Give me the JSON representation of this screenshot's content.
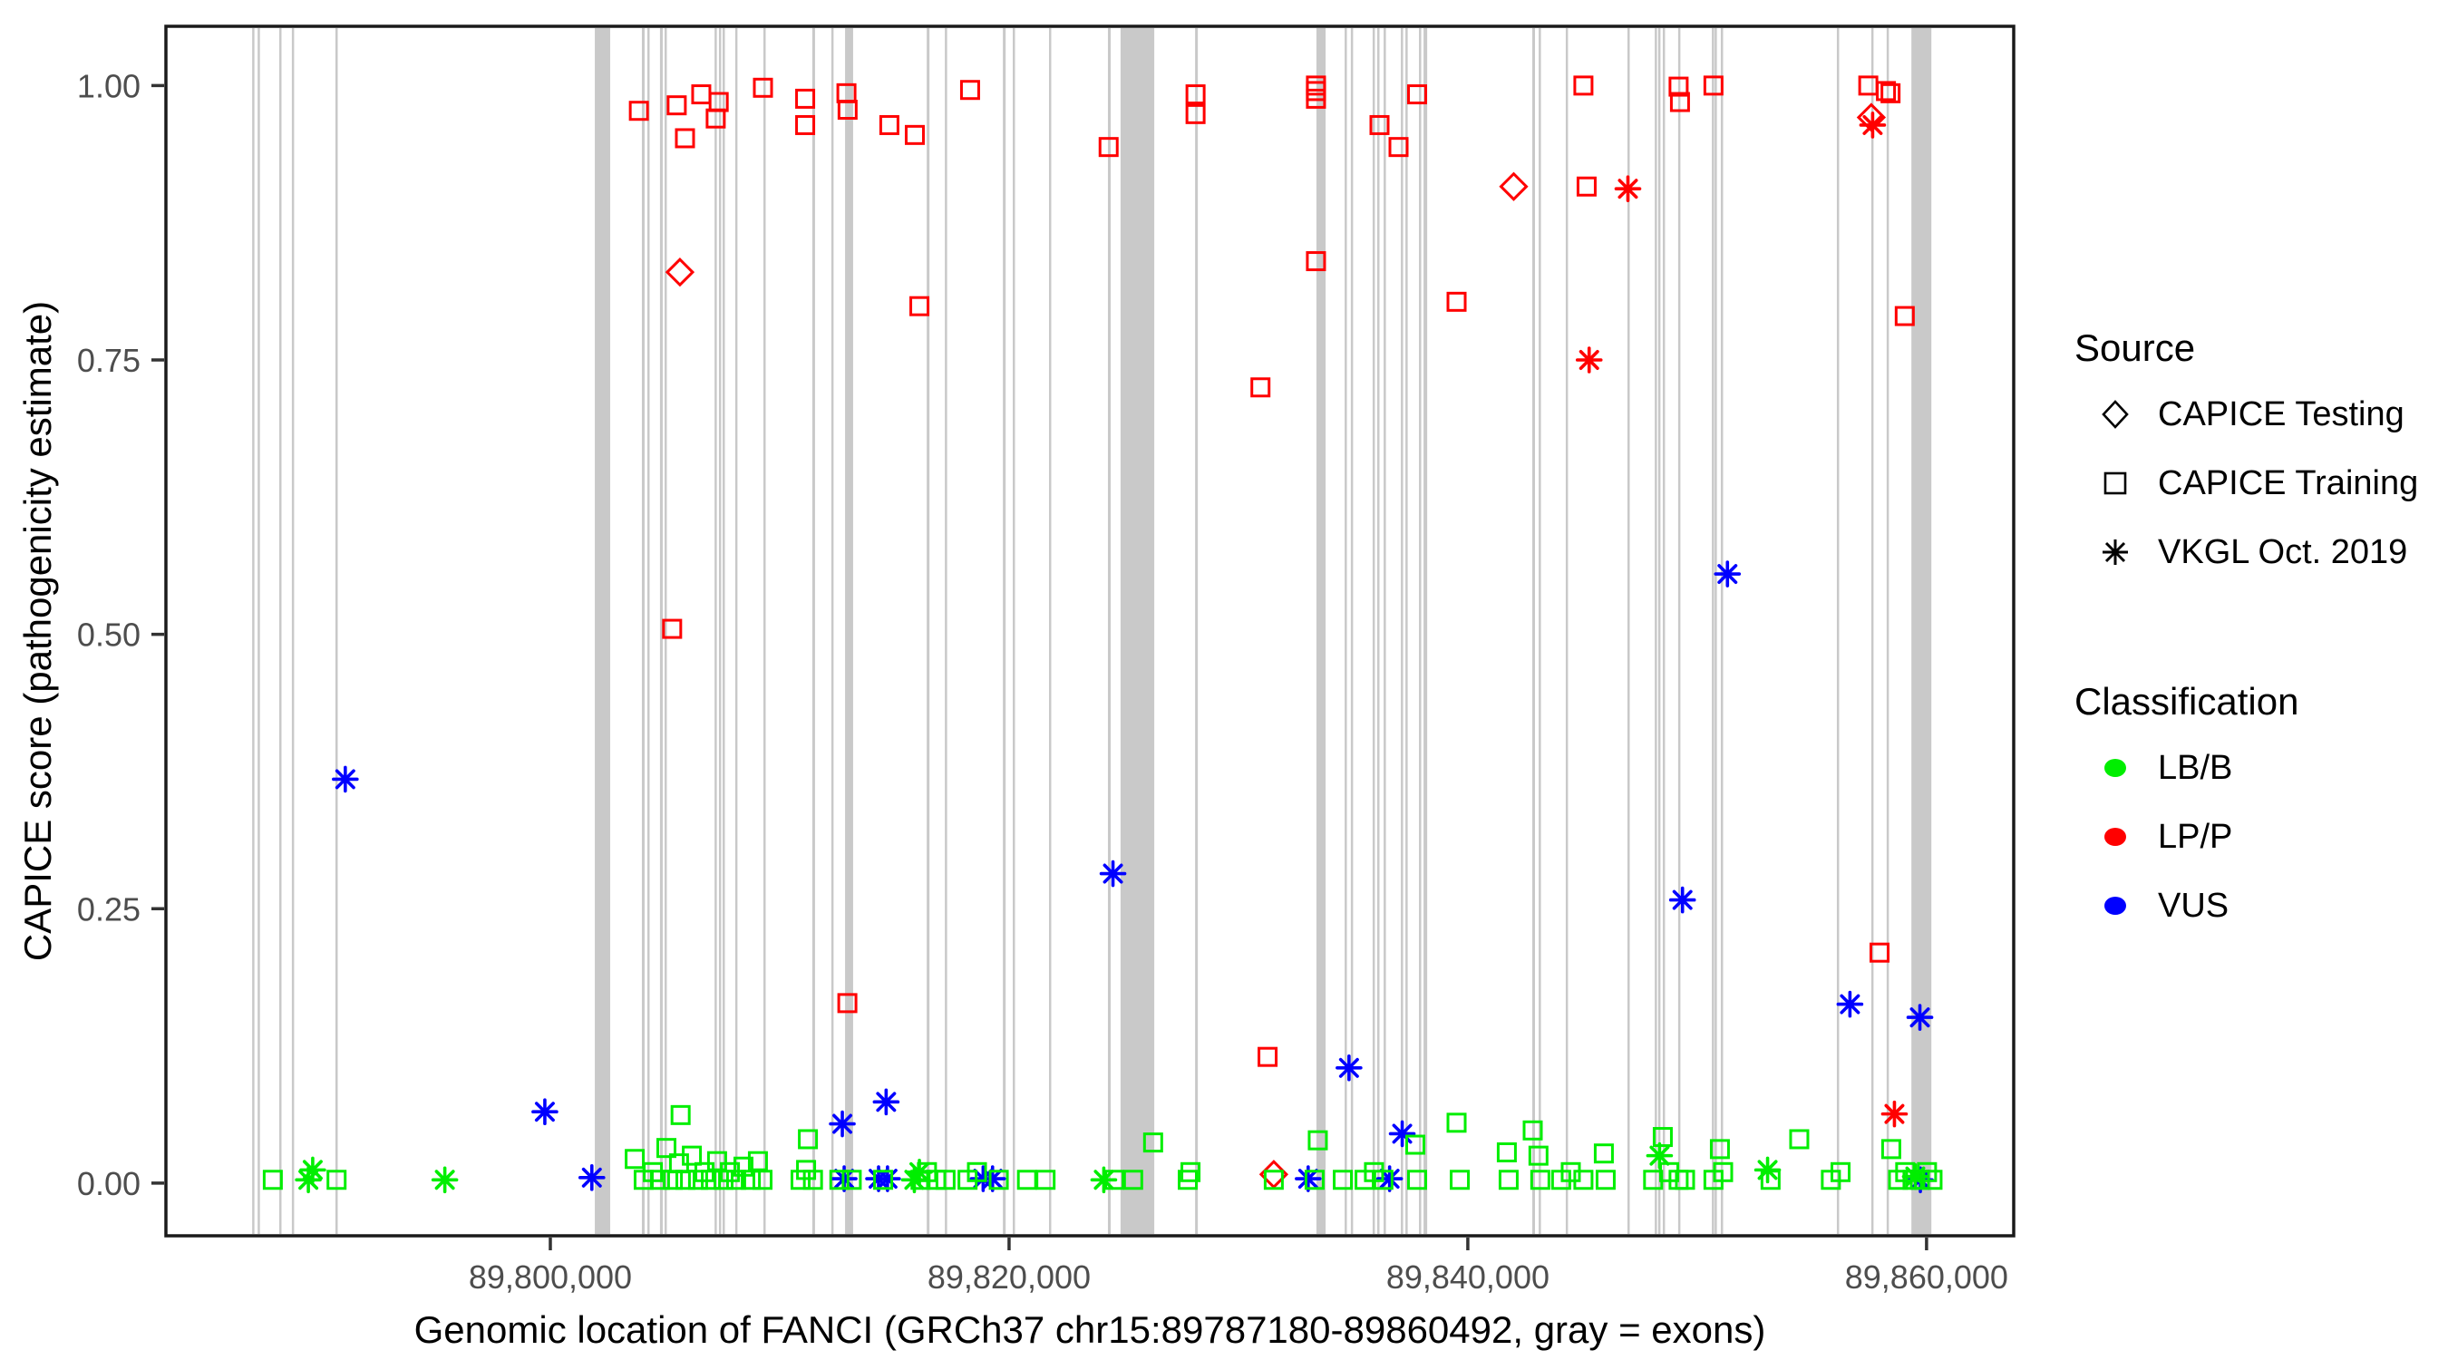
{
  "axes": {
    "x_title": "Genomic location of FANCI (GRCh37 chr15:89787180-89860492, gray = exons)",
    "y_title": "CAPICE score (pathogenicity estimate)",
    "x_ticks": [
      {
        "bp": 89800000,
        "label": "89,800,000"
      },
      {
        "bp": 89820000,
        "label": "89,820,000"
      },
      {
        "bp": 89840000,
        "label": "89,840,000"
      },
      {
        "bp": 89860000,
        "label": "89,860,000"
      }
    ],
    "y_ticks": [
      {
        "v": 0.0,
        "label": "0.00"
      },
      {
        "v": 0.25,
        "label": "0.25"
      },
      {
        "v": 0.5,
        "label": "0.50"
      },
      {
        "v": 0.75,
        "label": "0.75"
      },
      {
        "v": 1.0,
        "label": "1.00"
      }
    ]
  },
  "legend": {
    "source": {
      "title": "Source",
      "items": [
        {
          "label": "CAPICE Testing",
          "shape": "diamond"
        },
        {
          "label": "CAPICE Training",
          "shape": "square"
        },
        {
          "label": "VKGL Oct. 2019",
          "shape": "asterisk"
        }
      ]
    },
    "classification": {
      "title": "Classification",
      "items": [
        {
          "label": "LB/B",
          "color": "#00EE00"
        },
        {
          "label": "LP/P",
          "color": "#FF0000"
        },
        {
          "label": "VUS",
          "color": "#0000FF"
        }
      ]
    }
  },
  "colors": {
    "LB/B": "#00EE00",
    "LP/P": "#FF0000",
    "VUS": "#0000FF",
    "exon": "#C9C9C9",
    "panel_border": "#1A1A1A",
    "tick_text": "#4D4D4D"
  },
  "chart_data": {
    "type": "scatter",
    "title": "",
    "xlabel": "Genomic location of FANCI (GRCh37 chr15:89787180-89860492, gray = exons)",
    "ylabel": "CAPICE score (pathogenicity estimate)",
    "x_domain_bp": [
      89783240,
      89863800
    ],
    "y_domain": [
      -0.048,
      1.054
    ],
    "grid": false,
    "legend_position": "right",
    "exons_bp": [
      [
        89787000,
        89787090
      ],
      [
        89787240,
        89787330
      ],
      [
        89788180,
        89788270
      ],
      [
        89788730,
        89788820
      ],
      [
        89790630,
        89790730
      ],
      [
        89801940,
        89802610
      ],
      [
        89803990,
        89804110
      ],
      [
        89804230,
        89804310
      ],
      [
        89804780,
        89804900
      ],
      [
        89804980,
        89805060
      ],
      [
        89807160,
        89807240
      ],
      [
        89807350,
        89807430
      ],
      [
        89807510,
        89807590
      ],
      [
        89808060,
        89808140
      ],
      [
        89809290,
        89809370
      ],
      [
        89811420,
        89811540
      ],
      [
        89812250,
        89812330
      ],
      [
        89812850,
        89813200
      ],
      [
        89816410,
        89816530
      ],
      [
        89817200,
        89817280
      ],
      [
        89819730,
        89819850
      ],
      [
        89820160,
        89820240
      ],
      [
        89821740,
        89821820
      ],
      [
        89824310,
        89824430
      ],
      [
        89824860,
        89826330
      ],
      [
        89828110,
        89828230
      ],
      [
        89833400,
        89833800
      ],
      [
        89834630,
        89834710
      ],
      [
        89834900,
        89834980
      ],
      [
        89835850,
        89835930
      ],
      [
        89836050,
        89836130
      ],
      [
        89836330,
        89836410
      ],
      [
        89837080,
        89837160
      ],
      [
        89837280,
        89837360
      ],
      [
        89837870,
        89837950
      ],
      [
        89838070,
        89838230
      ],
      [
        89842810,
        89842930
      ],
      [
        89843090,
        89843170
      ],
      [
        89844270,
        89844350
      ],
      [
        89846960,
        89847040
      ],
      [
        89848150,
        89848230
      ],
      [
        89848300,
        89848380
      ],
      [
        89848500,
        89848580
      ],
      [
        89849170,
        89849250
      ],
      [
        89850640,
        89850720
      ],
      [
        89850760,
        89850840
      ],
      [
        89851030,
        89851110
      ],
      [
        89856090,
        89856170
      ],
      [
        89857590,
        89857670
      ],
      [
        89858260,
        89858340
      ],
      [
        89859340,
        89860210
      ]
    ],
    "points_format": [
      "bp",
      "score",
      "source",
      "classification"
    ],
    "points": [
      [
        89803860,
        0.977,
        "training",
        "LP/P"
      ],
      [
        89805510,
        0.982,
        "training",
        "LP/P"
      ],
      [
        89806580,
        0.992,
        "training",
        "LP/P"
      ],
      [
        89807340,
        0.985,
        "training",
        "LP/P"
      ],
      [
        89807210,
        0.97,
        "training",
        "LP/P"
      ],
      [
        89805870,
        0.952,
        "training",
        "LP/P"
      ],
      [
        89809270,
        0.998,
        "training",
        "LP/P"
      ],
      [
        89811110,
        0.988,
        "training",
        "LP/P"
      ],
      [
        89811110,
        0.964,
        "training",
        "LP/P"
      ],
      [
        89812910,
        0.993,
        "training",
        "LP/P"
      ],
      [
        89812960,
        0.978,
        "training",
        "LP/P"
      ],
      [
        89814780,
        0.964,
        "training",
        "LP/P"
      ],
      [
        89815890,
        0.955,
        "training",
        "LP/P"
      ],
      [
        89818300,
        0.996,
        "training",
        "LP/P"
      ],
      [
        89824340,
        0.944,
        "training",
        "LP/P"
      ],
      [
        89828130,
        0.992,
        "training",
        "LP/P"
      ],
      [
        89828130,
        0.974,
        "training",
        "LP/P"
      ],
      [
        89833380,
        1.0,
        "training",
        "LP/P"
      ],
      [
        89833380,
        0.995,
        "training",
        "LP/P"
      ],
      [
        89833380,
        0.988,
        "training",
        "LP/P"
      ],
      [
        89833380,
        0.84,
        "training",
        "LP/P"
      ],
      [
        89836150,
        0.964,
        "training",
        "LP/P"
      ],
      [
        89836980,
        0.944,
        "training",
        "LP/P"
      ],
      [
        89816090,
        0.799,
        "training",
        "LP/P"
      ],
      [
        89837790,
        0.992,
        "training",
        "LP/P"
      ],
      [
        89845040,
        1.0,
        "training",
        "LP/P"
      ],
      [
        89845180,
        0.908,
        "training",
        "LP/P"
      ],
      [
        89849190,
        0.999,
        "training",
        "LP/P"
      ],
      [
        89849250,
        0.985,
        "training",
        "LP/P"
      ],
      [
        89850710,
        1.0,
        "training",
        "LP/P"
      ],
      [
        89857460,
        1.0,
        "training",
        "LP/P"
      ],
      [
        89858230,
        0.995,
        "training",
        "LP/P"
      ],
      [
        89858430,
        0.993,
        "training",
        "LP/P"
      ],
      [
        89830960,
        0.725,
        "training",
        "LP/P"
      ],
      [
        89839510,
        0.803,
        "training",
        "LP/P"
      ],
      [
        89859050,
        0.79,
        "training",
        "LP/P"
      ],
      [
        89857950,
        0.21,
        "training",
        "LP/P"
      ],
      [
        89831270,
        0.115,
        "training",
        "LP/P"
      ],
      [
        89805310,
        0.505,
        "training",
        "LP/P"
      ],
      [
        89812950,
        0.164,
        "training",
        "LP/P"
      ],
      [
        89805650,
        0.83,
        "testing",
        "LP/P"
      ],
      [
        89842000,
        0.908,
        "testing",
        "LP/P"
      ],
      [
        89857590,
        0.971,
        "testing",
        "LP/P"
      ],
      [
        89831540,
        0.008,
        "testing",
        "LP/P"
      ],
      [
        89846980,
        0.906,
        "vkgl",
        "LP/P"
      ],
      [
        89845290,
        0.75,
        "vkgl",
        "LP/P"
      ],
      [
        89857650,
        0.964,
        "vkgl",
        "LP/P"
      ],
      [
        89858600,
        0.063,
        "vkgl",
        "LP/P"
      ],
      [
        89791060,
        0.368,
        "vkgl",
        "VUS"
      ],
      [
        89851320,
        0.555,
        "vkgl",
        "VUS"
      ],
      [
        89824530,
        0.282,
        "vkgl",
        "VUS"
      ],
      [
        89849360,
        0.258,
        "vkgl",
        "VUS"
      ],
      [
        89856660,
        0.163,
        "vkgl",
        "VUS"
      ],
      [
        89859710,
        0.151,
        "vkgl",
        "VUS"
      ],
      [
        89834820,
        0.105,
        "vkgl",
        "VUS"
      ],
      [
        89814640,
        0.074,
        "vkgl",
        "VUS"
      ],
      [
        89812730,
        0.054,
        "vkgl",
        "VUS"
      ],
      [
        89799760,
        0.065,
        "vkgl",
        "VUS"
      ],
      [
        89801810,
        0.005,
        "vkgl",
        "VUS"
      ],
      [
        89837140,
        0.045,
        "vkgl",
        "VUS"
      ],
      [
        89833040,
        0.004,
        "vkgl",
        "VUS"
      ],
      [
        89836590,
        0.004,
        "vkgl",
        "VUS"
      ],
      [
        89812810,
        0.004,
        "vkgl",
        "VUS"
      ],
      [
        89814310,
        0.004,
        "vkgl",
        "VUS"
      ],
      [
        89814700,
        0.004,
        "vkgl",
        "VUS"
      ],
      [
        89818870,
        0.004,
        "vkgl",
        "VUS"
      ],
      [
        89819280,
        0.004,
        "vkgl",
        "VUS"
      ],
      [
        89859730,
        0.003,
        "vkgl",
        "VUS"
      ],
      [
        89787900,
        0.003,
        "training",
        "LB/B"
      ],
      [
        89789450,
        0.003,
        "vkgl",
        "LB/B"
      ],
      [
        89789640,
        0.012,
        "vkgl",
        "LB/B"
      ],
      [
        89790680,
        0.003,
        "training",
        "LB/B"
      ],
      [
        89795400,
        0.003,
        "vkgl",
        "LB/B"
      ],
      [
        89803680,
        0.022,
        "training",
        "LB/B"
      ],
      [
        89804070,
        0.003,
        "training",
        "LB/B"
      ],
      [
        89804470,
        0.01,
        "training",
        "LB/B"
      ],
      [
        89804780,
        0.003,
        "training",
        "LB/B"
      ],
      [
        89805060,
        0.032,
        "training",
        "LB/B"
      ],
      [
        89805340,
        0.003,
        "training",
        "LB/B"
      ],
      [
        89805610,
        0.018,
        "training",
        "LB/B"
      ],
      [
        89805680,
        0.062,
        "training",
        "LB/B"
      ],
      [
        89805890,
        0.003,
        "training",
        "LB/B"
      ],
      [
        89806170,
        0.025,
        "training",
        "LB/B"
      ],
      [
        89806440,
        0.003,
        "training",
        "LB/B"
      ],
      [
        89806720,
        0.01,
        "training",
        "LB/B"
      ],
      [
        89807000,
        0.003,
        "training",
        "LB/B"
      ],
      [
        89807270,
        0.02,
        "training",
        "LB/B"
      ],
      [
        89807550,
        0.003,
        "training",
        "LB/B"
      ],
      [
        89807830,
        0.01,
        "training",
        "LB/B"
      ],
      [
        89808100,
        0.003,
        "training",
        "LB/B"
      ],
      [
        89808420,
        0.015,
        "training",
        "LB/B"
      ],
      [
        89808740,
        0.003,
        "training",
        "LB/B"
      ],
      [
        89809050,
        0.02,
        "training",
        "LB/B"
      ],
      [
        89809250,
        0.003,
        "training",
        "LB/B"
      ],
      [
        89811230,
        0.04,
        "training",
        "LB/B"
      ],
      [
        89810910,
        0.003,
        "training",
        "LB/B"
      ],
      [
        89811150,
        0.012,
        "training",
        "LB/B"
      ],
      [
        89811450,
        0.003,
        "training",
        "LB/B"
      ],
      [
        89812600,
        0.003,
        "training",
        "LB/B"
      ],
      [
        89813140,
        0.003,
        "training",
        "LB/B"
      ],
      [
        89814510,
        0.003,
        "training",
        "LB/B"
      ],
      [
        89815870,
        0.003,
        "vkgl",
        "LB/B"
      ],
      [
        89816090,
        0.01,
        "vkgl",
        "LB/B"
      ],
      [
        89816140,
        0.003,
        "training",
        "LB/B"
      ],
      [
        89816420,
        0.01,
        "training",
        "LB/B"
      ],
      [
        89816820,
        0.003,
        "training",
        "LB/B"
      ],
      [
        89817230,
        0.003,
        "training",
        "LB/B"
      ],
      [
        89818190,
        0.003,
        "training",
        "LB/B"
      ],
      [
        89818600,
        0.01,
        "training",
        "LB/B"
      ],
      [
        89819550,
        0.003,
        "training",
        "LB/B"
      ],
      [
        89820780,
        0.003,
        "training",
        "LB/B"
      ],
      [
        89821590,
        0.003,
        "training",
        "LB/B"
      ],
      [
        89824130,
        0.003,
        "vkgl",
        "LB/B"
      ],
      [
        89824590,
        0.003,
        "training",
        "LB/B"
      ],
      [
        89825410,
        0.003,
        "training",
        "LB/B"
      ],
      [
        89826280,
        0.037,
        "training",
        "LB/B"
      ],
      [
        89827790,
        0.003,
        "training",
        "LB/B"
      ],
      [
        89827910,
        0.01,
        "training",
        "LB/B"
      ],
      [
        89831540,
        0.003,
        "training",
        "LB/B"
      ],
      [
        89833320,
        0.003,
        "training",
        "LB/B"
      ],
      [
        89833460,
        0.039,
        "training",
        "LB/B"
      ],
      [
        89834550,
        0.003,
        "training",
        "LB/B"
      ],
      [
        89835500,
        0.003,
        "training",
        "LB/B"
      ],
      [
        89835910,
        0.01,
        "training",
        "LB/B"
      ],
      [
        89836320,
        0.003,
        "training",
        "LB/B"
      ],
      [
        89837710,
        0.035,
        "training",
        "LB/B"
      ],
      [
        89837790,
        0.003,
        "training",
        "LB/B"
      ],
      [
        89839510,
        0.055,
        "training",
        "LB/B"
      ],
      [
        89839650,
        0.003,
        "training",
        "LB/B"
      ],
      [
        89841700,
        0.028,
        "training",
        "LB/B"
      ],
      [
        89841780,
        0.003,
        "training",
        "LB/B"
      ],
      [
        89842830,
        0.048,
        "training",
        "LB/B"
      ],
      [
        89843080,
        0.025,
        "training",
        "LB/B"
      ],
      [
        89843160,
        0.003,
        "training",
        "LB/B"
      ],
      [
        89844070,
        0.003,
        "training",
        "LB/B"
      ],
      [
        89844490,
        0.01,
        "training",
        "LB/B"
      ],
      [
        89845040,
        0.003,
        "training",
        "LB/B"
      ],
      [
        89845930,
        0.027,
        "training",
        "LB/B"
      ],
      [
        89846010,
        0.003,
        "training",
        "LB/B"
      ],
      [
        89848080,
        0.003,
        "training",
        "LB/B"
      ],
      [
        89848360,
        0.025,
        "vkgl",
        "LB/B"
      ],
      [
        89848500,
        0.042,
        "training",
        "LB/B"
      ],
      [
        89848780,
        0.01,
        "training",
        "LB/B"
      ],
      [
        89849190,
        0.003,
        "training",
        "LB/B"
      ],
      [
        89849470,
        0.003,
        "training",
        "LB/B"
      ],
      [
        89850710,
        0.003,
        "training",
        "LB/B"
      ],
      [
        89850990,
        0.031,
        "training",
        "LB/B"
      ],
      [
        89851130,
        0.01,
        "training",
        "LB/B"
      ],
      [
        89853070,
        0.012,
        "vkgl",
        "LB/B"
      ],
      [
        89853200,
        0.003,
        "training",
        "LB/B"
      ],
      [
        89854450,
        0.04,
        "training",
        "LB/B"
      ],
      [
        89855830,
        0.003,
        "training",
        "LB/B"
      ],
      [
        89856250,
        0.01,
        "training",
        "LB/B"
      ],
      [
        89858460,
        0.031,
        "training",
        "LB/B"
      ],
      [
        89858760,
        0.003,
        "training",
        "LB/B"
      ],
      [
        89859070,
        0.01,
        "training",
        "LB/B"
      ],
      [
        89859390,
        0.003,
        "training",
        "LB/B"
      ],
      [
        89859510,
        0.006,
        "vkgl",
        "LB/B"
      ],
      [
        89859710,
        0.003,
        "training",
        "LB/B"
      ],
      [
        89860020,
        0.01,
        "training",
        "LB/B"
      ],
      [
        89860260,
        0.003,
        "training",
        "LB/B"
      ]
    ]
  }
}
